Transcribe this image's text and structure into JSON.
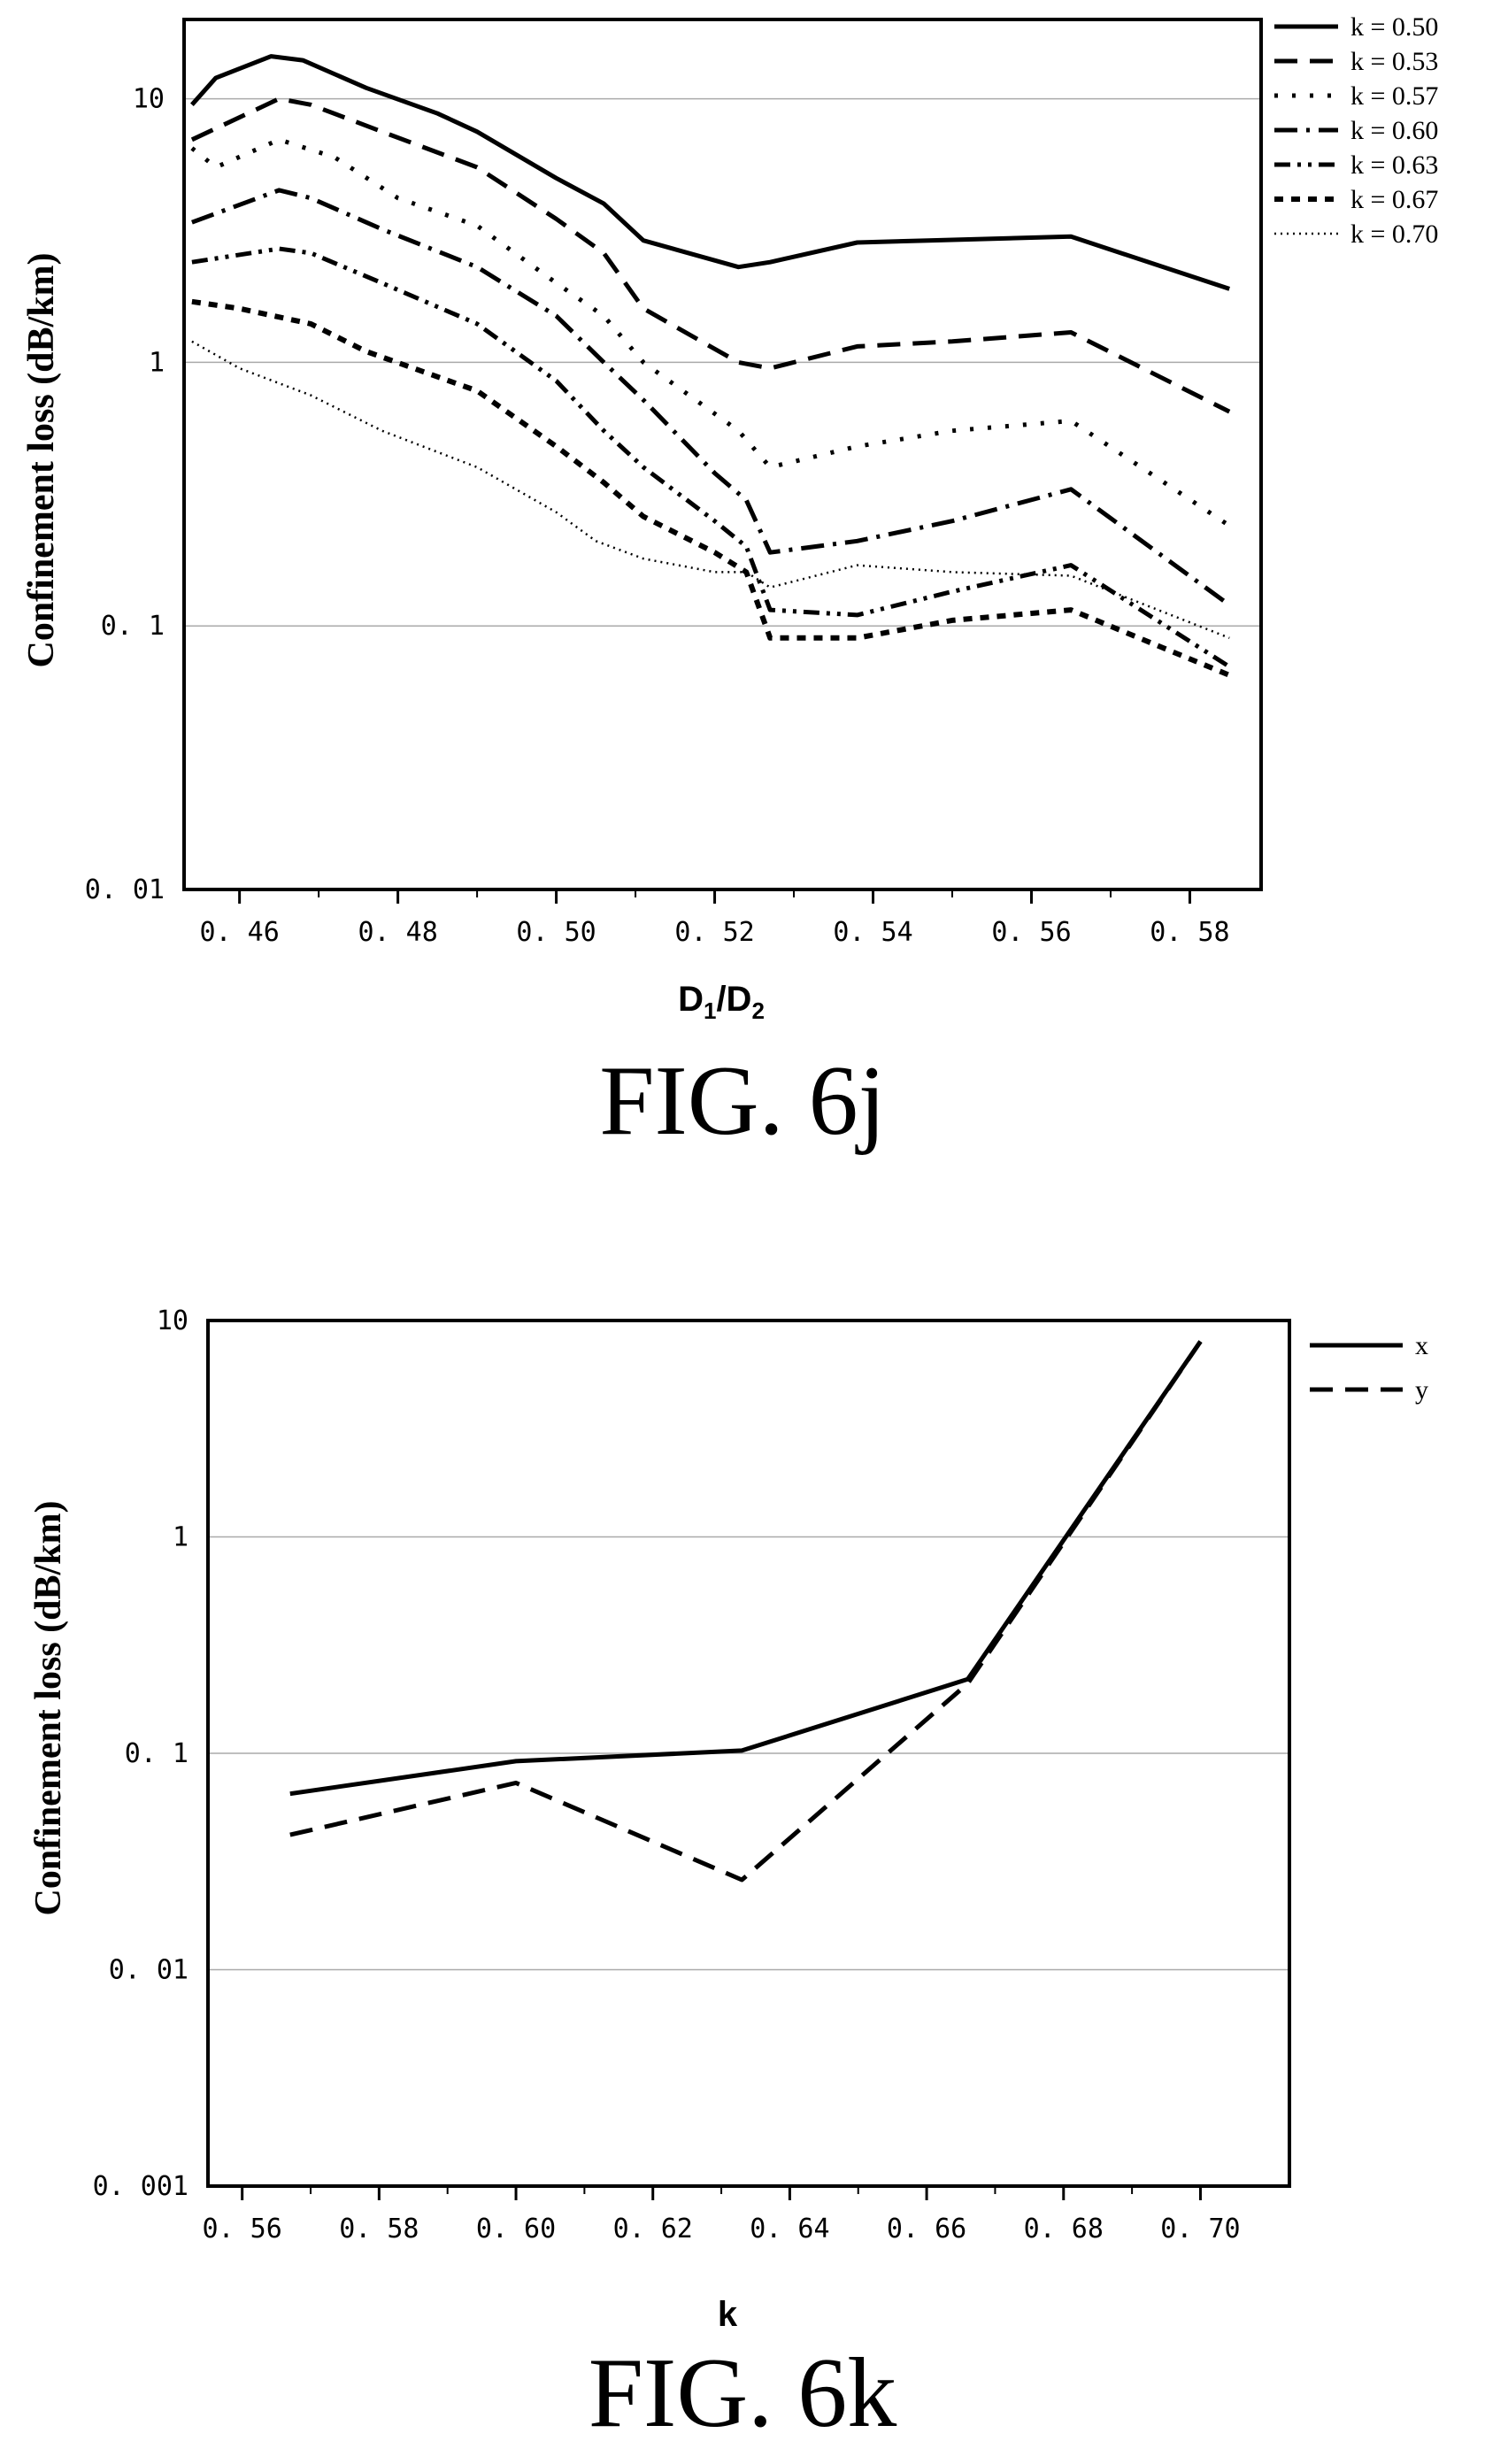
{
  "chart_data": [
    {
      "type": "line",
      "caption": "FIG. 6j",
      "xlabel_main": "D",
      "xlabel_sub1": "1",
      "xlabel_slash": "/D",
      "xlabel_sub2": "2",
      "ylabel": "Confinement loss (dB/km)",
      "yscale": "log",
      "xlim": [
        0.453,
        0.589
      ],
      "ylim": [
        0.01,
        20
      ],
      "xticks": [
        0.46,
        0.48,
        0.5,
        0.52,
        0.54,
        0.56,
        0.58
      ],
      "xtick_labels": [
        "0. 46",
        "0. 48",
        "0. 50",
        "0. 52",
        "0. 54",
        "0. 56",
        "0. 58"
      ],
      "yticks": [
        0.01,
        0.1,
        1,
        10
      ],
      "ytick_labels": [
        "0. 01",
        "0. 1",
        "1",
        "10"
      ],
      "grid": "horizontal",
      "legend_position": "outside-right",
      "series": [
        {
          "name": "k = 0.50",
          "dash": "solid",
          "x": [
            0.454,
            0.457,
            0.464,
            0.468,
            0.476,
            0.485,
            0.49,
            0.5,
            0.506,
            0.511,
            0.523,
            0.527,
            0.538,
            0.547,
            0.565,
            0.585
          ],
          "y": [
            9.5,
            12.0,
            14.5,
            14.0,
            11.0,
            8.8,
            7.5,
            5.0,
            4.0,
            2.9,
            2.3,
            2.4,
            2.85,
            2.9,
            3.0,
            1.9
          ]
        },
        {
          "name": "k = 0.53",
          "dash": "dash",
          "x": [
            0.454,
            0.465,
            0.469,
            0.478,
            0.49,
            0.5,
            0.506,
            0.511,
            0.523,
            0.527,
            0.538,
            0.55,
            0.565,
            0.585
          ],
          "y": [
            7.0,
            10.0,
            9.5,
            7.5,
            5.5,
            3.5,
            2.6,
            1.6,
            1.0,
            0.95,
            1.15,
            1.2,
            1.3,
            0.65
          ]
        },
        {
          "name": "k = 0.57",
          "dash": "dot",
          "x": [
            0.454,
            0.457,
            0.465,
            0.472,
            0.48,
            0.49,
            0.5,
            0.506,
            0.511,
            0.523,
            0.527,
            0.538,
            0.55,
            0.565,
            0.585
          ],
          "y": [
            6.5,
            5.5,
            7.0,
            6.0,
            4.2,
            3.3,
            2.0,
            1.5,
            1.0,
            0.55,
            0.4,
            0.48,
            0.55,
            0.6,
            0.24
          ]
        },
        {
          "name": "k = 0.60",
          "dash": "dashdot",
          "x": [
            0.454,
            0.465,
            0.469,
            0.478,
            0.49,
            0.5,
            0.506,
            0.511,
            0.52,
            0.524,
            0.527,
            0.538,
            0.55,
            0.565,
            0.585
          ],
          "y": [
            3.4,
            4.5,
            4.2,
            3.2,
            2.3,
            1.5,
            1.0,
            0.72,
            0.38,
            0.3,
            0.19,
            0.21,
            0.25,
            0.33,
            0.12
          ]
        },
        {
          "name": "k = 0.63",
          "dash": "dashdotdot",
          "x": [
            0.454,
            0.465,
            0.469,
            0.478,
            0.49,
            0.5,
            0.506,
            0.511,
            0.52,
            0.524,
            0.527,
            0.538,
            0.55,
            0.565,
            0.585
          ],
          "y": [
            2.4,
            2.7,
            2.6,
            2.0,
            1.4,
            0.85,
            0.55,
            0.4,
            0.25,
            0.2,
            0.115,
            0.11,
            0.135,
            0.17,
            0.07
          ]
        },
        {
          "name": "k = 0.67",
          "dash": "shortdash",
          "x": [
            0.454,
            0.46,
            0.469,
            0.476,
            0.49,
            0.5,
            0.506,
            0.511,
            0.52,
            0.524,
            0.527,
            0.538,
            0.55,
            0.565,
            0.585
          ],
          "y": [
            1.7,
            1.6,
            1.4,
            1.1,
            0.78,
            0.48,
            0.35,
            0.26,
            0.19,
            0.16,
            0.09,
            0.09,
            0.105,
            0.115,
            0.065
          ]
        },
        {
          "name": "k = 0.70",
          "dash": "finedot",
          "x": [
            0.454,
            0.46,
            0.469,
            0.478,
            0.49,
            0.5,
            0.505,
            0.511,
            0.52,
            0.524,
            0.527,
            0.538,
            0.55,
            0.565,
            0.585
          ],
          "y": [
            1.2,
            0.95,
            0.75,
            0.55,
            0.4,
            0.27,
            0.21,
            0.18,
            0.16,
            0.16,
            0.14,
            0.17,
            0.16,
            0.155,
            0.09
          ]
        }
      ]
    },
    {
      "type": "line",
      "caption": "FIG. 6k",
      "xlabel": "k",
      "ylabel": "Confinement loss (dB/km)",
      "yscale": "log",
      "xlim": [
        0.555,
        0.713
      ],
      "ylim": [
        0.001,
        10
      ],
      "xticks": [
        0.56,
        0.58,
        0.6,
        0.62,
        0.64,
        0.66,
        0.68,
        0.7
      ],
      "xtick_labels": [
        "0. 56",
        "0. 58",
        "0. 60",
        "0. 62",
        "0. 64",
        "0. 66",
        "0. 68",
        "0. 70"
      ],
      "yticks": [
        0.001,
        0.01,
        0.1,
        1,
        10
      ],
      "ytick_labels": [
        "0. 001",
        "0. 01",
        "0. 1",
        "1",
        "10"
      ],
      "grid": "horizontal",
      "legend_position": "outside-right",
      "series": [
        {
          "name": "x",
          "dash": "solid",
          "x": [
            0.567,
            0.6,
            0.633,
            0.666,
            0.7
          ],
          "y": [
            0.065,
            0.092,
            0.103,
            0.22,
            8.0
          ]
        },
        {
          "name": "y",
          "dash": "dash",
          "x": [
            0.567,
            0.6,
            0.633,
            0.666,
            0.7
          ],
          "y": [
            0.042,
            0.073,
            0.026,
            0.21,
            8.0
          ]
        }
      ]
    }
  ]
}
